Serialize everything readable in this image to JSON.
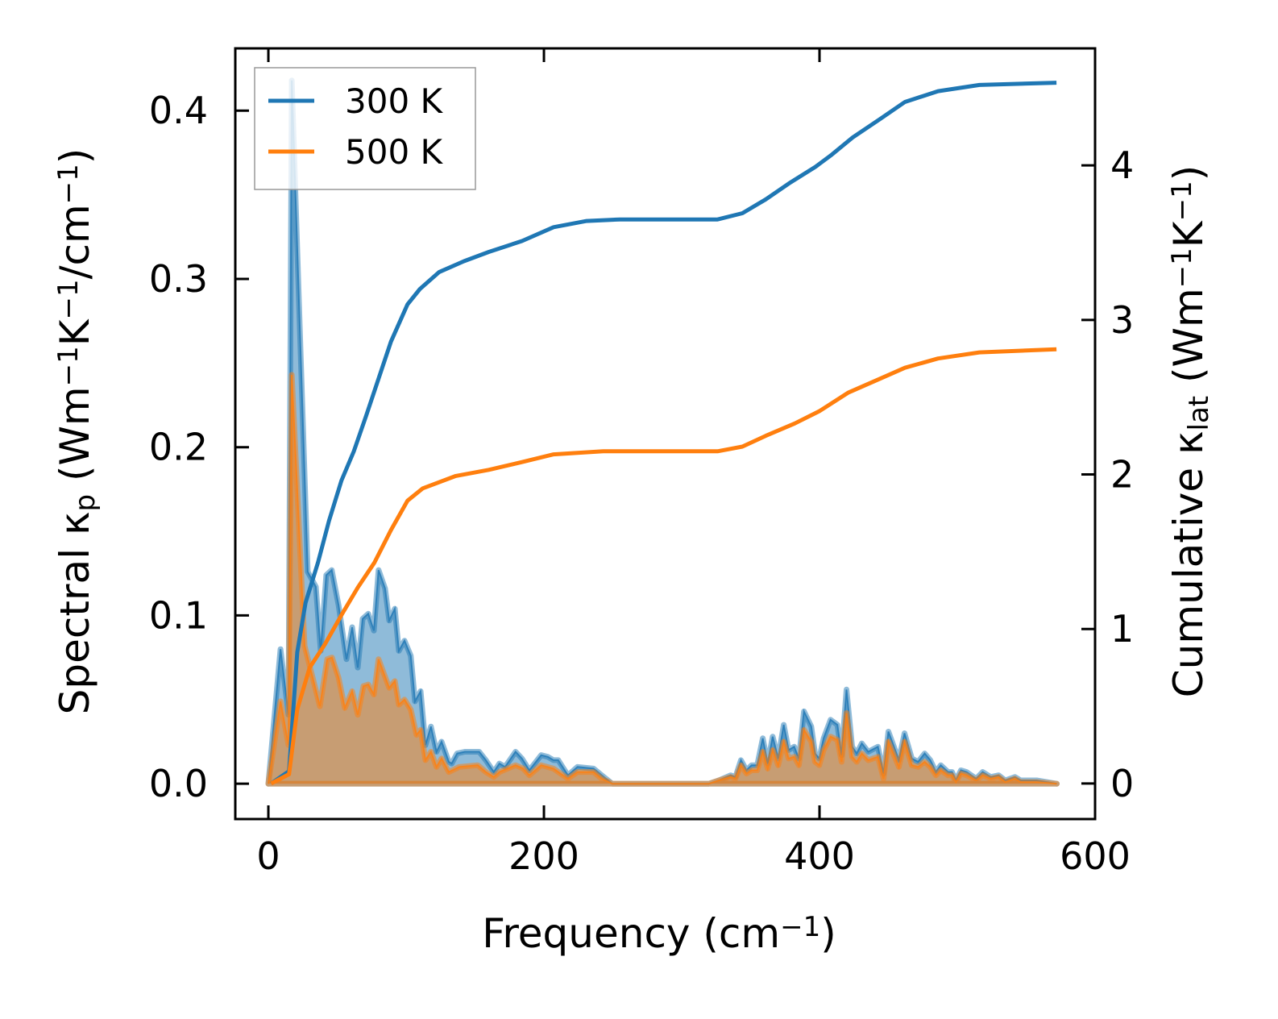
{
  "chart_data": {
    "type": "area",
    "xlabel_parts": [
      {
        "t": "Frequency (cm"
      },
      {
        "t": "−1",
        "sup": true
      },
      {
        "t": ")"
      }
    ],
    "ylabel_left_parts": [
      {
        "t": "Spectral κ"
      },
      {
        "t": "p",
        "sub": true
      },
      {
        "t": " (Wm"
      },
      {
        "t": "−1",
        "sup": true
      },
      {
        "t": "K"
      },
      {
        "t": "−1",
        "sup": true
      },
      {
        "t": "/cm"
      },
      {
        "t": "−1",
        "sup": true
      },
      {
        "t": ")"
      }
    ],
    "ylabel_right_parts": [
      {
        "t": "Cumulative κ"
      },
      {
        "t": "lat",
        "sub": true
      },
      {
        "t": " (Wm"
      },
      {
        "t": "−1",
        "sup": true
      },
      {
        "t": "K"
      },
      {
        "t": "−1",
        "sup": true
      },
      {
        "t": ")"
      }
    ],
    "xlim": [
      -24,
      600
    ],
    "ylim_left": [
      -0.021,
      0.437
    ],
    "ylim_right": [
      -0.23,
      4.757
    ],
    "x_ticks": [
      "0",
      "200",
      "400",
      "600"
    ],
    "x_tick_values": [
      0,
      200,
      400,
      600
    ],
    "y_left_ticks": [
      "0.0",
      "0.1",
      "0.2",
      "0.3",
      "0.4"
    ],
    "y_left_tick_values": [
      0,
      0.1,
      0.2,
      0.3,
      0.4
    ],
    "y_right_ticks": [
      "0",
      "1",
      "2",
      "3",
      "4"
    ],
    "y_right_tick_values": [
      0,
      1,
      2,
      3,
      4
    ],
    "grid": false,
    "legend_position": "top-left",
    "colors": {
      "300 K": "#1f77b4",
      "500 K": "#ff7f0e"
    },
    "series": [
      {
        "name": "300 K",
        "spectral": [
          [
            0,
            0
          ],
          [
            8.8,
            0.08
          ],
          [
            14.6,
            0.041
          ],
          [
            17,
            0.418
          ],
          [
            28.6,
            0.126
          ],
          [
            34.5,
            0.117
          ],
          [
            38,
            0.079
          ],
          [
            42,
            0.124
          ],
          [
            46,
            0.127
          ],
          [
            51,
            0.106
          ],
          [
            56.7,
            0.074
          ],
          [
            60.8,
            0.093
          ],
          [
            64.9,
            0.069
          ],
          [
            68.4,
            0.098
          ],
          [
            72.5,
            0.101
          ],
          [
            76.6,
            0.091
          ],
          [
            80,
            0.127
          ],
          [
            84.7,
            0.116
          ],
          [
            87.7,
            0.097
          ],
          [
            91.8,
            0.104
          ],
          [
            94.7,
            0.079
          ],
          [
            98.8,
            0.085
          ],
          [
            103.4,
            0.076
          ],
          [
            106.4,
            0.049
          ],
          [
            110.5,
            0.055
          ],
          [
            114,
            0.023
          ],
          [
            118,
            0.034
          ],
          [
            122,
            0.019
          ],
          [
            125.7,
            0.025
          ],
          [
            131,
            0.013
          ],
          [
            133,
            0.012
          ],
          [
            137,
            0.018
          ],
          [
            142.6,
            0.019
          ],
          [
            148.4,
            0.019
          ],
          [
            153,
            0.019
          ],
          [
            157.8,
            0.014
          ],
          [
            163.6,
            0.007
          ],
          [
            167.7,
            0.012
          ],
          [
            171.8,
            0.01
          ],
          [
            179.4,
            0.019
          ],
          [
            184,
            0.015
          ],
          [
            189.4,
            0.008
          ],
          [
            198,
            0.017
          ],
          [
            202.8,
            0.016
          ],
          [
            206.9,
            0.014
          ],
          [
            210.4,
            0.014
          ],
          [
            217.4,
            0.005
          ],
          [
            224.4,
            0.01
          ],
          [
            236,
            0.009
          ],
          [
            242,
            0.005
          ],
          [
            249.6,
            0
          ],
          [
            319.7,
            0
          ],
          [
            327,
            0.002
          ],
          [
            335.5,
            0.005
          ],
          [
            339,
            0.004
          ],
          [
            343,
            0.014
          ],
          [
            347,
            0.008
          ],
          [
            350.7,
            0.011
          ],
          [
            354.8,
            0.011
          ],
          [
            358.8,
            0.027
          ],
          [
            362.4,
            0.012
          ],
          [
            366,
            0.028
          ],
          [
            370,
            0.015
          ],
          [
            374,
            0.035
          ],
          [
            377.6,
            0.02
          ],
          [
            381.6,
            0.022
          ],
          [
            385,
            0.015
          ],
          [
            388.7,
            0.043
          ],
          [
            394,
            0.034
          ],
          [
            396.8,
            0.018
          ],
          [
            399.8,
            0.015
          ],
          [
            403,
            0.027
          ],
          [
            408,
            0.038
          ],
          [
            413,
            0.035
          ],
          [
            416,
            0.017
          ],
          [
            419.6,
            0.056
          ],
          [
            423.7,
            0.022
          ],
          [
            427,
            0.018
          ],
          [
            430.7,
            0.024
          ],
          [
            435.4,
            0.019
          ],
          [
            442.4,
            0.022
          ],
          [
            446.5,
            0.006
          ],
          [
            450,
            0.031
          ],
          [
            457.6,
            0.014
          ],
          [
            461.7,
            0.03
          ],
          [
            467,
            0.015
          ],
          [
            471.6,
            0.013
          ],
          [
            476.3,
            0.018
          ],
          [
            480.4,
            0.014
          ],
          [
            484.5,
            0.007
          ],
          [
            488,
            0.011
          ],
          [
            493.3,
            0.007
          ],
          [
            496.2,
            0.007
          ],
          [
            499,
            0.002
          ],
          [
            502.6,
            0.008
          ],
          [
            506.7,
            0.007
          ],
          [
            513.7,
            0.003
          ],
          [
            518.4,
            0.007
          ],
          [
            524.3,
            0.004
          ],
          [
            530,
            0.005
          ],
          [
            534.8,
            0.002
          ],
          [
            541.8,
            0.004
          ],
          [
            545.9,
            0.002
          ],
          [
            549.4,
            0.002
          ],
          [
            557.6,
            0.002
          ],
          [
            572.2,
            0
          ]
        ],
        "cumulative": [
          [
            2,
            0
          ],
          [
            15,
            0.08
          ],
          [
            21,
            0.85
          ],
          [
            27,
            1.17
          ],
          [
            36,
            1.43
          ],
          [
            44,
            1.7
          ],
          [
            53,
            1.96
          ],
          [
            62,
            2.15
          ],
          [
            71,
            2.38
          ],
          [
            80,
            2.62
          ],
          [
            89,
            2.86
          ],
          [
            101,
            3.1
          ],
          [
            110,
            3.2
          ],
          [
            124,
            3.31
          ],
          [
            142,
            3.38
          ],
          [
            160,
            3.44
          ],
          [
            184,
            3.51
          ],
          [
            207,
            3.6
          ],
          [
            231,
            3.64
          ],
          [
            255,
            3.65
          ],
          [
            326,
            3.65
          ],
          [
            344,
            3.69
          ],
          [
            361,
            3.78
          ],
          [
            379,
            3.89
          ],
          [
            397,
            3.99
          ],
          [
            409,
            4.07
          ],
          [
            424,
            4.18
          ],
          [
            444,
            4.3
          ],
          [
            462,
            4.41
          ],
          [
            486,
            4.48
          ],
          [
            516,
            4.52
          ],
          [
            572,
            4.535
          ]
        ]
      },
      {
        "name": "500 K",
        "spectral": [
          [
            0,
            0
          ],
          [
            8.8,
            0.049
          ],
          [
            14.6,
            0.023
          ],
          [
            17,
            0.243
          ],
          [
            26.3,
            0.082
          ],
          [
            37.4,
            0.046
          ],
          [
            42.7,
            0.074
          ],
          [
            46.2,
            0.075
          ],
          [
            51,
            0.063
          ],
          [
            55.5,
            0.045
          ],
          [
            60.8,
            0.055
          ],
          [
            64.9,
            0.041
          ],
          [
            69,
            0.058
          ],
          [
            72.5,
            0.059
          ],
          [
            76.6,
            0.053
          ],
          [
            80,
            0.074
          ],
          [
            87.7,
            0.057
          ],
          [
            91.8,
            0.061
          ],
          [
            94.7,
            0.047
          ],
          [
            98.8,
            0.05
          ],
          [
            103.4,
            0.044
          ],
          [
            107.5,
            0.029
          ],
          [
            110.5,
            0.032
          ],
          [
            114,
            0.014
          ],
          [
            118,
            0.019
          ],
          [
            122,
            0.01
          ],
          [
            125.7,
            0.015
          ],
          [
            131,
            0.007
          ],
          [
            138.5,
            0.01
          ],
          [
            152,
            0.011
          ],
          [
            157.8,
            0.007
          ],
          [
            163.6,
            0.004
          ],
          [
            167.7,
            0.007
          ],
          [
            179.4,
            0.011
          ],
          [
            185,
            0.009
          ],
          [
            189.4,
            0.005
          ],
          [
            198,
            0.011
          ],
          [
            206.9,
            0.009
          ],
          [
            217.4,
            0.003
          ],
          [
            224.4,
            0.007
          ],
          [
            236,
            0.007
          ],
          [
            242,
            0.003
          ],
          [
            249.6,
            0
          ],
          [
            319.7,
            0
          ],
          [
            327,
            0.002
          ],
          [
            335.5,
            0.004
          ],
          [
            339,
            0.003
          ],
          [
            343,
            0.011
          ],
          [
            347,
            0.006
          ],
          [
            350.7,
            0.008
          ],
          [
            354.8,
            0.008
          ],
          [
            358.8,
            0.019
          ],
          [
            362.4,
            0.009
          ],
          [
            366,
            0.02
          ],
          [
            370,
            0.011
          ],
          [
            374,
            0.025
          ],
          [
            377.6,
            0.015
          ],
          [
            381.6,
            0.016
          ],
          [
            385,
            0.011
          ],
          [
            388.7,
            0.032
          ],
          [
            394,
            0.025
          ],
          [
            396.8,
            0.013
          ],
          [
            399.8,
            0.011
          ],
          [
            403,
            0.02
          ],
          [
            408,
            0.028
          ],
          [
            413,
            0.026
          ],
          [
            416,
            0.013
          ],
          [
            419.6,
            0.042
          ],
          [
            423.7,
            0.016
          ],
          [
            427,
            0.013
          ],
          [
            430.7,
            0.018
          ],
          [
            435.4,
            0.014
          ],
          [
            442.4,
            0.016
          ],
          [
            446.5,
            0.003
          ],
          [
            450,
            0.025
          ],
          [
            457.6,
            0.01
          ],
          [
            461.7,
            0.025
          ],
          [
            467,
            0.011
          ],
          [
            471.6,
            0.01
          ],
          [
            476.3,
            0.013
          ],
          [
            480.4,
            0.01
          ],
          [
            484.5,
            0.005
          ],
          [
            488,
            0.008
          ],
          [
            493.3,
            0.005
          ],
          [
            496.2,
            0.005
          ],
          [
            499,
            0.001
          ],
          [
            502.6,
            0.006
          ],
          [
            506.7,
            0.005
          ],
          [
            513.7,
            0.002
          ],
          [
            518.4,
            0.005
          ],
          [
            524.3,
            0.003
          ],
          [
            530,
            0.004
          ],
          [
            534.8,
            0.001
          ],
          [
            541.8,
            0.003
          ],
          [
            545.9,
            0.001
          ],
          [
            549.4,
            0.001
          ],
          [
            557.6,
            0.001
          ],
          [
            572.2,
            0
          ]
        ],
        "cumulative": [
          [
            2,
            0
          ],
          [
            15,
            0.06
          ],
          [
            21,
            0.48
          ],
          [
            30,
            0.75
          ],
          [
            41,
            0.9
          ],
          [
            53,
            1.09
          ],
          [
            65,
            1.27
          ],
          [
            77,
            1.43
          ],
          [
            89,
            1.64
          ],
          [
            101,
            1.83
          ],
          [
            112,
            1.91
          ],
          [
            136,
            1.99
          ],
          [
            160,
            2.03
          ],
          [
            184,
            2.08
          ],
          [
            207,
            2.13
          ],
          [
            243,
            2.15
          ],
          [
            326,
            2.15
          ],
          [
            344,
            2.18
          ],
          [
            361,
            2.25
          ],
          [
            382,
            2.33
          ],
          [
            400,
            2.41
          ],
          [
            421,
            2.53
          ],
          [
            444,
            2.62
          ],
          [
            462,
            2.69
          ],
          [
            486,
            2.75
          ],
          [
            516,
            2.79
          ],
          [
            572,
            2.81
          ]
        ]
      }
    ]
  }
}
